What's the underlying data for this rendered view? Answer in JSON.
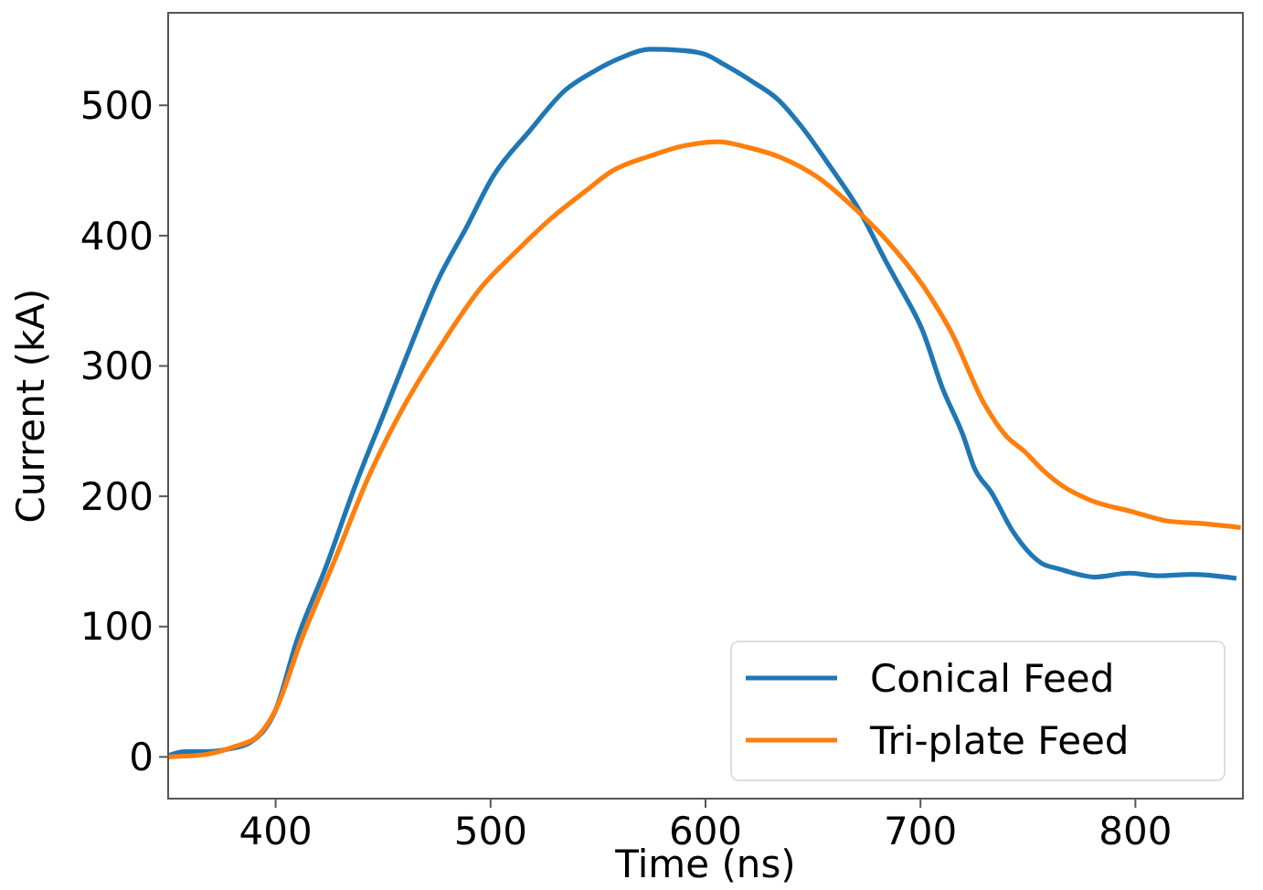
{
  "chart_data": {
    "type": "line",
    "xlabel": "Time (ns)",
    "ylabel": "Current (kA)",
    "xlim": [
      350,
      850
    ],
    "ylim": [
      -32,
      571
    ],
    "xticks": [
      400,
      500,
      600,
      700,
      800
    ],
    "yticks": [
      0,
      100,
      200,
      300,
      400,
      500
    ],
    "grid": false,
    "legend": "bottom right",
    "series": [
      {
        "name": "Conical Feed",
        "color": "#1f77b4",
        "x": [
          350,
          358,
          368,
          378,
          388,
          400,
          410,
          423,
          437,
          450,
          463,
          475,
          489,
          501,
          518,
          535,
          548,
          560,
          574,
          590,
          600,
          609,
          622,
          634,
          645,
          658,
          671,
          684,
          690,
          701,
          710,
          720,
          725,
          733,
          743,
          756,
          765,
          771,
          781,
          797,
          810,
          826,
          847
        ],
        "values": [
          1,
          4,
          4,
          6,
          11,
          36,
          90,
          144,
          208,
          262,
          316,
          364,
          407,
          445,
          480,
          512,
          526,
          536,
          543,
          542,
          539,
          531,
          518,
          504,
          483,
          453,
          421,
          380,
          362,
          327,
          284,
          246,
          222,
          203,
          173,
          149,
          144,
          141,
          138,
          141,
          139,
          140,
          137
        ]
      },
      {
        "name": "Tri-plate Feed",
        "color": "#ff7f0e",
        "x": [
          350,
          368,
          381,
          391,
          400,
          412,
          427,
          443,
          459,
          479,
          495,
          512,
          528,
          544,
          557,
          574,
          590,
          606,
          619,
          635,
          652,
          668,
          684,
          701,
          714,
          730,
          740,
          748,
          757,
          766,
          779,
          799,
          815,
          832,
          849
        ],
        "values": [
          0,
          2,
          8,
          15,
          36,
          90,
          149,
          214,
          267,
          321,
          359,
          388,
          413,
          434,
          450,
          461,
          469,
          472,
          468,
          460,
          445,
          423,
          397,
          362,
          327,
          270,
          246,
          235,
          220,
          208,
          197,
          188,
          181,
          179,
          176
        ]
      }
    ]
  }
}
